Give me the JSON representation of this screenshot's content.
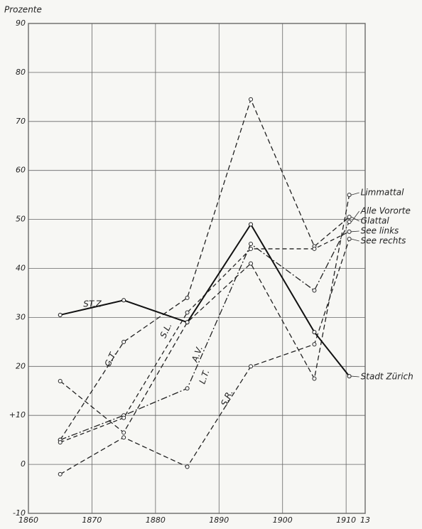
{
  "chart_data": {
    "type": "line",
    "y_label": "Prozente",
    "x": [
      1865,
      1875,
      1885,
      1895,
      1905,
      1910.5
    ],
    "series": [
      {
        "name": "Limmattal",
        "label": "L.T.",
        "color": "#222",
        "dash": "7 4",
        "values": [
          17,
          6.5,
          29,
          41,
          17.5,
          55
        ]
      },
      {
        "name": "Alle Vororte",
        "label": "A.V.",
        "color": "#222",
        "dash": "9 3 2 3",
        "values": [
          5,
          10,
          15.5,
          45,
          35.5,
          49.5
        ]
      },
      {
        "name": "Glattal",
        "label": "G.T.",
        "color": "#222",
        "dash": "7 4",
        "values": [
          5,
          25,
          34,
          74.5,
          44.5,
          50.5
        ]
      },
      {
        "name": "See links",
        "label": "S.L.",
        "color": "#222",
        "dash": "6 4",
        "values": [
          4.5,
          9.5,
          31,
          44,
          44,
          47.5
        ]
      },
      {
        "name": "See rechts",
        "label": "S.R.",
        "color": "#222",
        "dash": "7 4",
        "values": [
          -2,
          5.5,
          -0.5,
          20,
          24.5,
          46
        ]
      },
      {
        "name": "Stadt Zürich",
        "label": "ST.Z",
        "color": "#111",
        "dash": "none",
        "values": [
          30.5,
          33.5,
          29,
          49,
          27,
          18
        ]
      }
    ],
    "xlim": [
      1860,
      1913
    ],
    "xticks": [
      1860,
      1870,
      1880,
      1890,
      1900,
      1910,
      {
        "value": 1913,
        "label": "13"
      }
    ],
    "ylim": [
      -10,
      90
    ],
    "yticks": [
      -10,
      0,
      {
        "value": 10,
        "label": "+10"
      },
      20,
      30,
      40,
      50,
      60,
      70,
      80,
      90
    ],
    "grid": true
  }
}
